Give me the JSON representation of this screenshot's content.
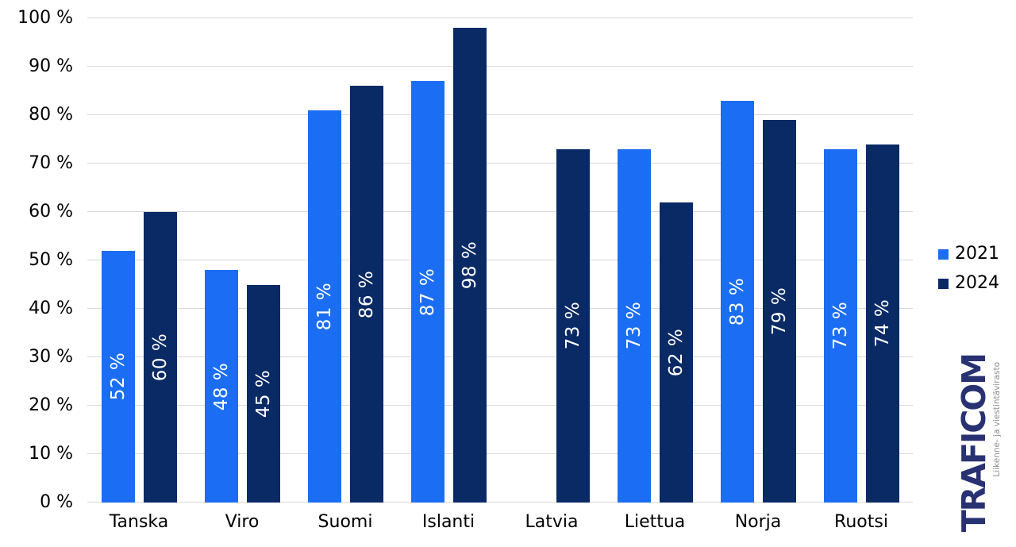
{
  "chart_data": {
    "type": "bar",
    "title": "",
    "xlabel": "",
    "ylabel": "",
    "categories": [
      "Tanska",
      "Viro",
      "Suomi",
      "Islanti",
      "Latvia",
      "Liettua",
      "Norja",
      "Ruotsi"
    ],
    "series": [
      {
        "name": "2021",
        "color": "#1b6ef3",
        "values": [
          52,
          48,
          81,
          87,
          null,
          73,
          83,
          73
        ],
        "labels": [
          "52 %",
          "48 %",
          "81 %",
          "87 %",
          null,
          "73 %",
          "83 %",
          "73 %"
        ]
      },
      {
        "name": "2024",
        "color": "#0a2a66",
        "values": [
          60,
          45,
          86,
          98,
          73,
          62,
          79,
          74
        ],
        "labels": [
          "60 %",
          "45 %",
          "86 %",
          "98 %",
          "73 %",
          "62 %",
          "79 %",
          "74 %"
        ]
      }
    ],
    "ylim": [
      0,
      100
    ],
    "yticks": [
      0,
      10,
      20,
      30,
      40,
      50,
      60,
      70,
      80,
      90,
      100
    ],
    "ytick_labels": [
      "0 %",
      "10 %",
      "20 %",
      "30 %",
      "40 %",
      "50 %",
      "60 %",
      "70 %",
      "80 %",
      "90 %",
      "100 %"
    ],
    "grid": true,
    "legend_position": "right",
    "bar_label_color": "#ffffff",
    "gridline_color": "#d9d9d9"
  },
  "legend": {
    "items": [
      {
        "label": "2021",
        "color": "#1b6ef3"
      },
      {
        "label": "2024",
        "color": "#0a2a66"
      }
    ]
  },
  "logo": {
    "brand": "TRAFICOM",
    "tagline": "Liikenne- ja viestintävirasto",
    "brand_color": "#283272",
    "tagline_color": "#8c8c8c"
  }
}
